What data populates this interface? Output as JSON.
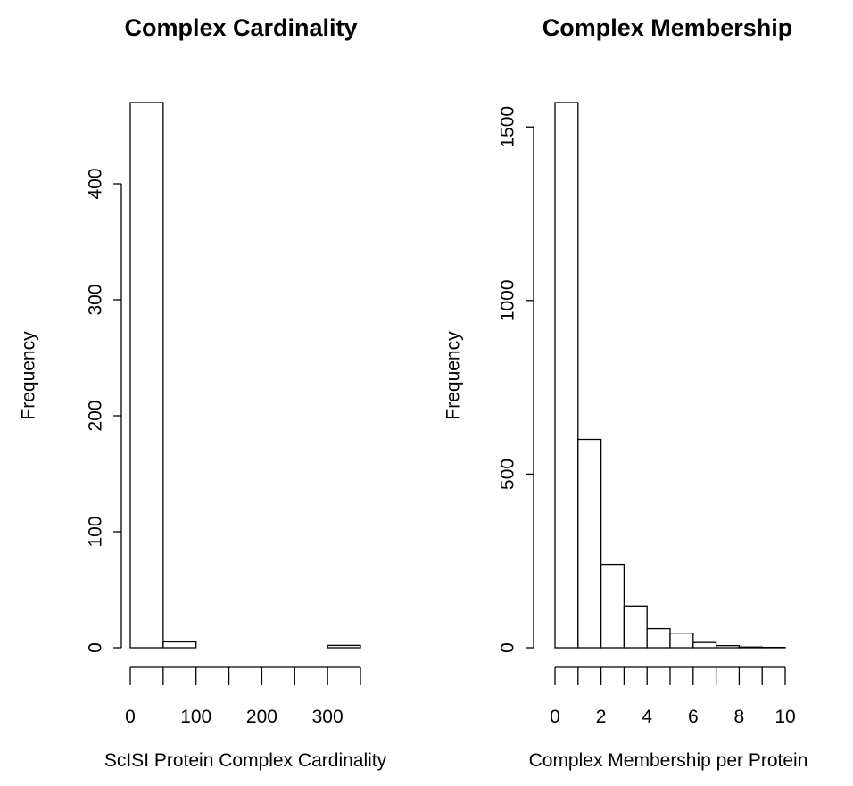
{
  "chart_data": [
    {
      "type": "bar",
      "title": "Complex Cardinality",
      "xlabel": "ScISI Protein Complex Cardinality",
      "ylabel": "Frequency",
      "bin_edges": [
        0,
        50,
        100,
        150,
        200,
        250,
        300,
        350
      ],
      "values": [
        470,
        5,
        0,
        0,
        0,
        0,
        2
      ],
      "xlim": [
        0,
        350
      ],
      "ylim": [
        0,
        470
      ],
      "x_ticks": [
        0,
        100,
        200,
        300
      ],
      "x_tick_marks": [
        0,
        50,
        100,
        150,
        200,
        250,
        300,
        350
      ],
      "y_ticks": [
        0,
        100,
        200,
        300,
        400
      ]
    },
    {
      "type": "bar",
      "title": "Complex Membership",
      "xlabel": "Complex Membership per Protein",
      "ylabel": "Frequency",
      "bin_edges": [
        0,
        1,
        2,
        3,
        4,
        5,
        6,
        7,
        8,
        9,
        10
      ],
      "values": [
        1570,
        600,
        240,
        120,
        55,
        42,
        15,
        6,
        2,
        1
      ],
      "xlim": [
        0,
        10
      ],
      "ylim": [
        0,
        1570
      ],
      "x_ticks": [
        0,
        2,
        4,
        6,
        8,
        10
      ],
      "x_tick_marks": [
        0,
        1,
        2,
        3,
        4,
        5,
        6,
        7,
        8,
        9,
        10
      ],
      "y_ticks": [
        0,
        500,
        1000,
        1500
      ]
    }
  ]
}
